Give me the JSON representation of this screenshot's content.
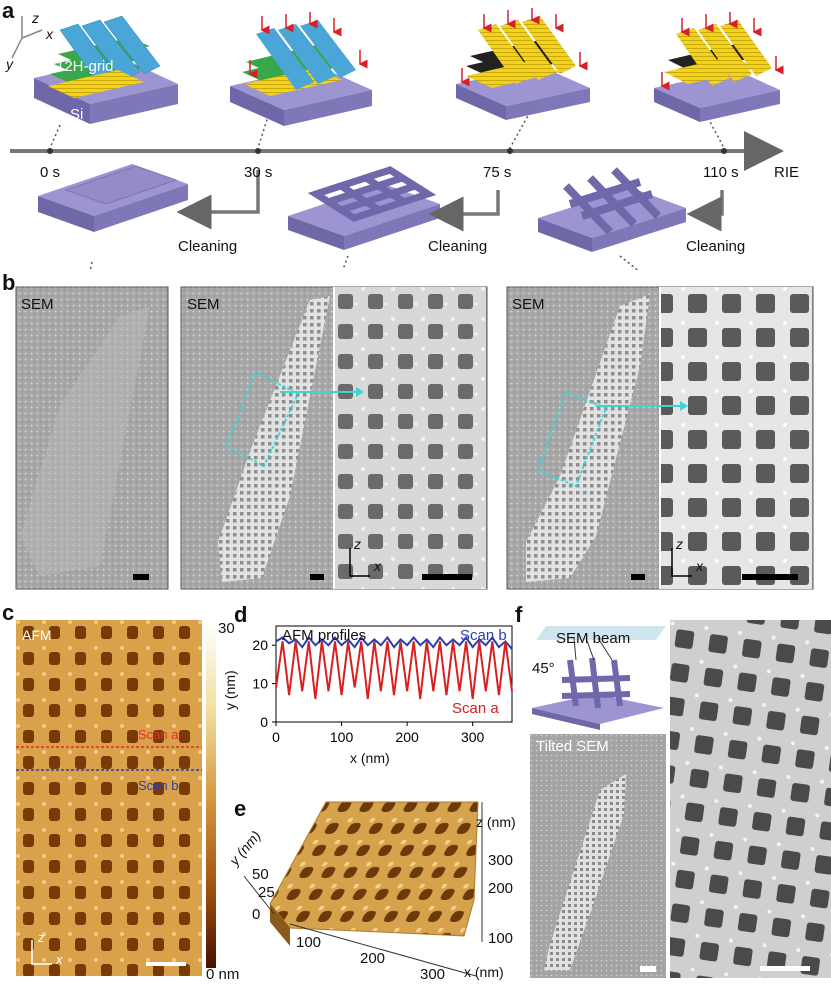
{
  "panels": {
    "a": "a",
    "b": "b",
    "c": "c",
    "d": "d",
    "e": "e",
    "f": "f"
  },
  "panel_a": {
    "axes": {
      "z": "z",
      "x": "x",
      "y": "y"
    },
    "grid_label": "12H-grid",
    "substrate_label": "Si",
    "times": [
      "0 s",
      "30 s",
      "75 s",
      "110 s"
    ],
    "process_label": "RIE",
    "cleaning_labels": [
      "Cleaning",
      "Cleaning",
      "Cleaning"
    ],
    "colors": {
      "substrate": "#8a82c2",
      "strand_blue": "#4aa6d6",
      "strand_green": "#3aa64a",
      "strand_yellow": "#f2d21a",
      "arrow": "#d8202a"
    }
  },
  "panel_b": {
    "sem_labels": [
      "SEM",
      "SEM",
      "SEM"
    ],
    "axes_mid": {
      "z": "z",
      "x": "x"
    },
    "axes_right": {
      "z": "z",
      "x": "x"
    },
    "roi_color": "#3ad6d6"
  },
  "panel_c": {
    "tag": "AFM",
    "colorbar_max": "30",
    "colorbar_min": "0 nm",
    "scan_a": "Scan a",
    "scan_b": "Scan b",
    "axes": {
      "z": "z",
      "x": "x"
    },
    "scan_a_color": "#e03030",
    "scan_b_color": "#2840b0"
  },
  "panel_d": {
    "legend_title": "AFM profiles",
    "scan_b_label": "Scan b",
    "scan_a_label": "Scan a",
    "ylabel": "y (nm)",
    "xlabel": "x (nm)",
    "yticks": [
      "0",
      "10",
      "20"
    ],
    "xticks": [
      "0",
      "100",
      "200",
      "300"
    ]
  },
  "panel_e": {
    "ylabel": "y (nm)",
    "yticks": [
      "50",
      "25",
      "0"
    ],
    "xlabel": "x (nm)",
    "xticks": [
      "100",
      "200",
      "300"
    ],
    "zlabel": "z (nm)",
    "zticks": [
      "300",
      "200",
      "100"
    ]
  },
  "panel_f": {
    "beam_label": "SEM beam",
    "angle_label": "45°",
    "tilted_label": "Tilted SEM"
  },
  "chart_data": {
    "type": "line",
    "title": "AFM profiles",
    "xlabel": "x (nm)",
    "ylabel": "y (nm)",
    "xlim": [
      0,
      360
    ],
    "ylim": [
      0,
      25
    ],
    "x": [
      0,
      10,
      20,
      30,
      40,
      50,
      60,
      70,
      80,
      90,
      100,
      110,
      120,
      130,
      140,
      150,
      160,
      170,
      180,
      190,
      200,
      210,
      220,
      230,
      240,
      250,
      260,
      270,
      280,
      290,
      300,
      310,
      320,
      330,
      340,
      350,
      360
    ],
    "series": [
      {
        "name": "Scan b",
        "color": "#2840b0",
        "values": [
          21,
          22,
          20.5,
          21.5,
          19.5,
          22,
          20,
          21.5,
          20,
          22,
          20,
          21.5,
          19.5,
          22,
          20,
          21.5,
          20,
          22,
          19.5,
          21.5,
          20,
          22,
          20,
          21.5,
          19.5,
          22,
          20,
          21.5,
          20,
          22,
          19.5,
          21.5,
          20,
          22,
          19.5,
          21,
          19
        ]
      },
      {
        "name": "Scan a",
        "color": "#d82020",
        "values": [
          9,
          21,
          7,
          21,
          8,
          21,
          6,
          21,
          8,
          21,
          7,
          21,
          9,
          21,
          6,
          21,
          8,
          21,
          7,
          21,
          8,
          21,
          6,
          21,
          8,
          21,
          7,
          21,
          8,
          21,
          6,
          21,
          8,
          21,
          7,
          21,
          8
        ]
      }
    ]
  }
}
